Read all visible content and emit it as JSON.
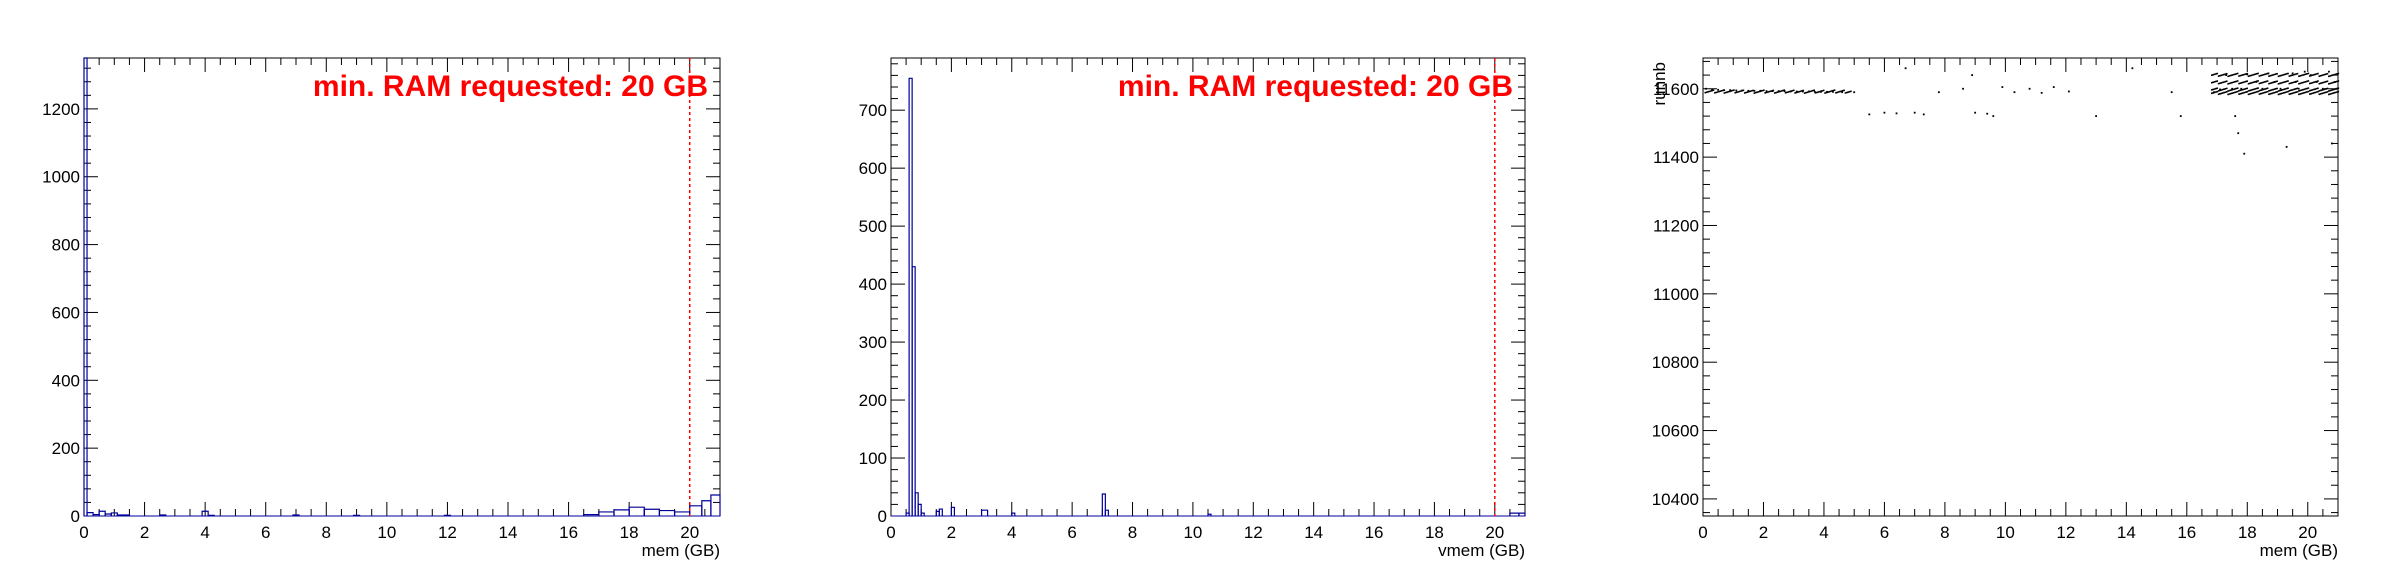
{
  "chart_data": [
    {
      "type": "histogram",
      "xlabel": "mem (GB)",
      "ylabel": "",
      "xlim": [
        0,
        21
      ],
      "ylim": [
        0,
        1350
      ],
      "xticks": [
        0,
        2,
        4,
        6,
        8,
        10,
        12,
        14,
        16,
        18,
        20
      ],
      "yticks": [
        0,
        200,
        400,
        600,
        800,
        1000,
        1200
      ],
      "line_color": "#000099",
      "annotation": "min. RAM requested: 20 GB",
      "annotation_color": "#ff0000",
      "threshold_x": 20,
      "bins": [
        [
          0.0,
          0.1,
          1350
        ],
        [
          0.1,
          0.3,
          10
        ],
        [
          0.3,
          0.5,
          4
        ],
        [
          0.5,
          0.7,
          14
        ],
        [
          0.7,
          0.9,
          6
        ],
        [
          0.9,
          1.1,
          9
        ],
        [
          1.1,
          1.5,
          3
        ],
        [
          2.5,
          2.7,
          3
        ],
        [
          3.9,
          4.1,
          14
        ],
        [
          4.1,
          4.3,
          2
        ],
        [
          6.9,
          7.1,
          3
        ],
        [
          8.9,
          9.1,
          2
        ],
        [
          11.9,
          12.1,
          2
        ],
        [
          16.5,
          17.0,
          4
        ],
        [
          17.0,
          17.5,
          12
        ],
        [
          17.5,
          18.0,
          18
        ],
        [
          18.0,
          18.5,
          26
        ],
        [
          18.5,
          19.0,
          20
        ],
        [
          19.0,
          19.5,
          16
        ],
        [
          19.5,
          20.0,
          12
        ],
        [
          20.0,
          20.4,
          30
        ],
        [
          20.4,
          20.7,
          45
        ],
        [
          20.7,
          21.0,
          62
        ]
      ]
    },
    {
      "type": "histogram",
      "xlabel": "vmem (GB)",
      "ylabel": "",
      "xlim": [
        0,
        21
      ],
      "ylim": [
        0,
        790
      ],
      "xticks": [
        0,
        2,
        4,
        6,
        8,
        10,
        12,
        14,
        16,
        18,
        20
      ],
      "yticks": [
        0,
        100,
        200,
        300,
        400,
        500,
        600,
        700
      ],
      "line_color": "#000099",
      "annotation": "min. RAM requested: 20 GB",
      "annotation_color": "#ff0000",
      "threshold_x": 20,
      "bins": [
        [
          0.5,
          0.6,
          5
        ],
        [
          0.6,
          0.7,
          755
        ],
        [
          0.7,
          0.8,
          430
        ],
        [
          0.8,
          0.9,
          40
        ],
        [
          0.9,
          1.0,
          20
        ],
        [
          1.0,
          1.1,
          5
        ],
        [
          1.5,
          1.6,
          8
        ],
        [
          1.6,
          1.7,
          12
        ],
        [
          2.0,
          2.1,
          15
        ],
        [
          3.0,
          3.2,
          10
        ],
        [
          4.0,
          4.1,
          5
        ],
        [
          7.0,
          7.1,
          38
        ],
        [
          7.1,
          7.2,
          10
        ],
        [
          10.5,
          10.6,
          3
        ],
        [
          20.5,
          20.8,
          5
        ],
        [
          20.8,
          21.0,
          5
        ]
      ]
    },
    {
      "type": "scatter",
      "xlabel": "mem (GB)",
      "ylabel": "runnb",
      "xlim": [
        0,
        21
      ],
      "ylim": [
        10350,
        11690
      ],
      "xticks": [
        0,
        2,
        4,
        6,
        8,
        10,
        12,
        14,
        16,
        18,
        20
      ],
      "yticks": [
        10400,
        10600,
        10800,
        11000,
        11200,
        11400,
        11600
      ],
      "point_color": "#000000",
      "points": [
        [
          0.1,
          11600
        ],
        [
          0.3,
          11598
        ],
        [
          0.5,
          11597
        ],
        [
          0.7,
          11596
        ],
        [
          0.9,
          11596
        ],
        [
          1.1,
          11595
        ],
        [
          1.3,
          11595
        ],
        [
          1.5,
          11594
        ],
        [
          1.7,
          11594
        ],
        [
          1.9,
          11594
        ],
        [
          2.1,
          11593
        ],
        [
          2.3,
          11593
        ],
        [
          2.5,
          11593
        ],
        [
          2.7,
          11593
        ],
        [
          2.9,
          11592
        ],
        [
          3.1,
          11592
        ],
        [
          3.3,
          11592
        ],
        [
          3.5,
          11592
        ],
        [
          3.7,
          11591
        ],
        [
          3.9,
          11591
        ],
        [
          4.1,
          11591
        ],
        [
          4.3,
          11591
        ],
        [
          4.6,
          11590
        ],
        [
          5.0,
          11590
        ],
        [
          5.5,
          11525
        ],
        [
          6.0,
          11530
        ],
        [
          6.4,
          11528
        ],
        [
          6.7,
          11660
        ],
        [
          7.0,
          11530
        ],
        [
          7.3,
          11525
        ],
        [
          7.8,
          11590
        ],
        [
          8.6,
          11600
        ],
        [
          8.9,
          11640
        ],
        [
          9.0,
          11530
        ],
        [
          9.4,
          11527
        ],
        [
          9.6,
          11520
        ],
        [
          9.9,
          11605
        ],
        [
          10.3,
          11590
        ],
        [
          10.8,
          11600
        ],
        [
          11.2,
          11588
        ],
        [
          11.6,
          11605
        ],
        [
          12.1,
          11592
        ],
        [
          13.0,
          11520
        ],
        [
          14.2,
          11660
        ],
        [
          15.5,
          11590
        ],
        [
          15.8,
          11520
        ],
        [
          16.9,
          11590
        ],
        [
          17.1,
          11598
        ],
        [
          17.3,
          11640
        ],
        [
          17.5,
          11600
        ],
        [
          17.6,
          11520
        ],
        [
          17.7,
          11470
        ],
        [
          17.8,
          11600
        ],
        [
          17.9,
          11410
        ],
        [
          18.0,
          11642
        ],
        [
          18.3,
          11620
        ],
        [
          18.5,
          11600
        ],
        [
          18.7,
          11645
        ],
        [
          18.9,
          11620
        ],
        [
          19.1,
          11600
        ],
        [
          19.3,
          11430
        ],
        [
          19.5,
          11645
        ],
        [
          19.6,
          11620
        ],
        [
          19.7,
          11600
        ],
        [
          19.9,
          11650
        ],
        [
          20.1,
          11640
        ],
        [
          20.3,
          11620
        ],
        [
          20.5,
          11600
        ],
        [
          20.7,
          11650
        ],
        [
          20.8,
          11440
        ],
        [
          20.9,
          11620
        ],
        [
          20.95,
          11600
        ]
      ],
      "dense_bands": [
        {
          "x_start": 0.05,
          "x_end": 4.9,
          "y": 11594
        },
        {
          "x_start": 16.8,
          "x_end": 21.0,
          "y": 11643
        },
        {
          "x_start": 16.8,
          "x_end": 21.0,
          "y": 11621
        },
        {
          "x_start": 16.8,
          "x_end": 21.0,
          "y": 11600
        },
        {
          "x_start": 16.8,
          "x_end": 21.0,
          "y": 11590
        }
      ]
    }
  ]
}
